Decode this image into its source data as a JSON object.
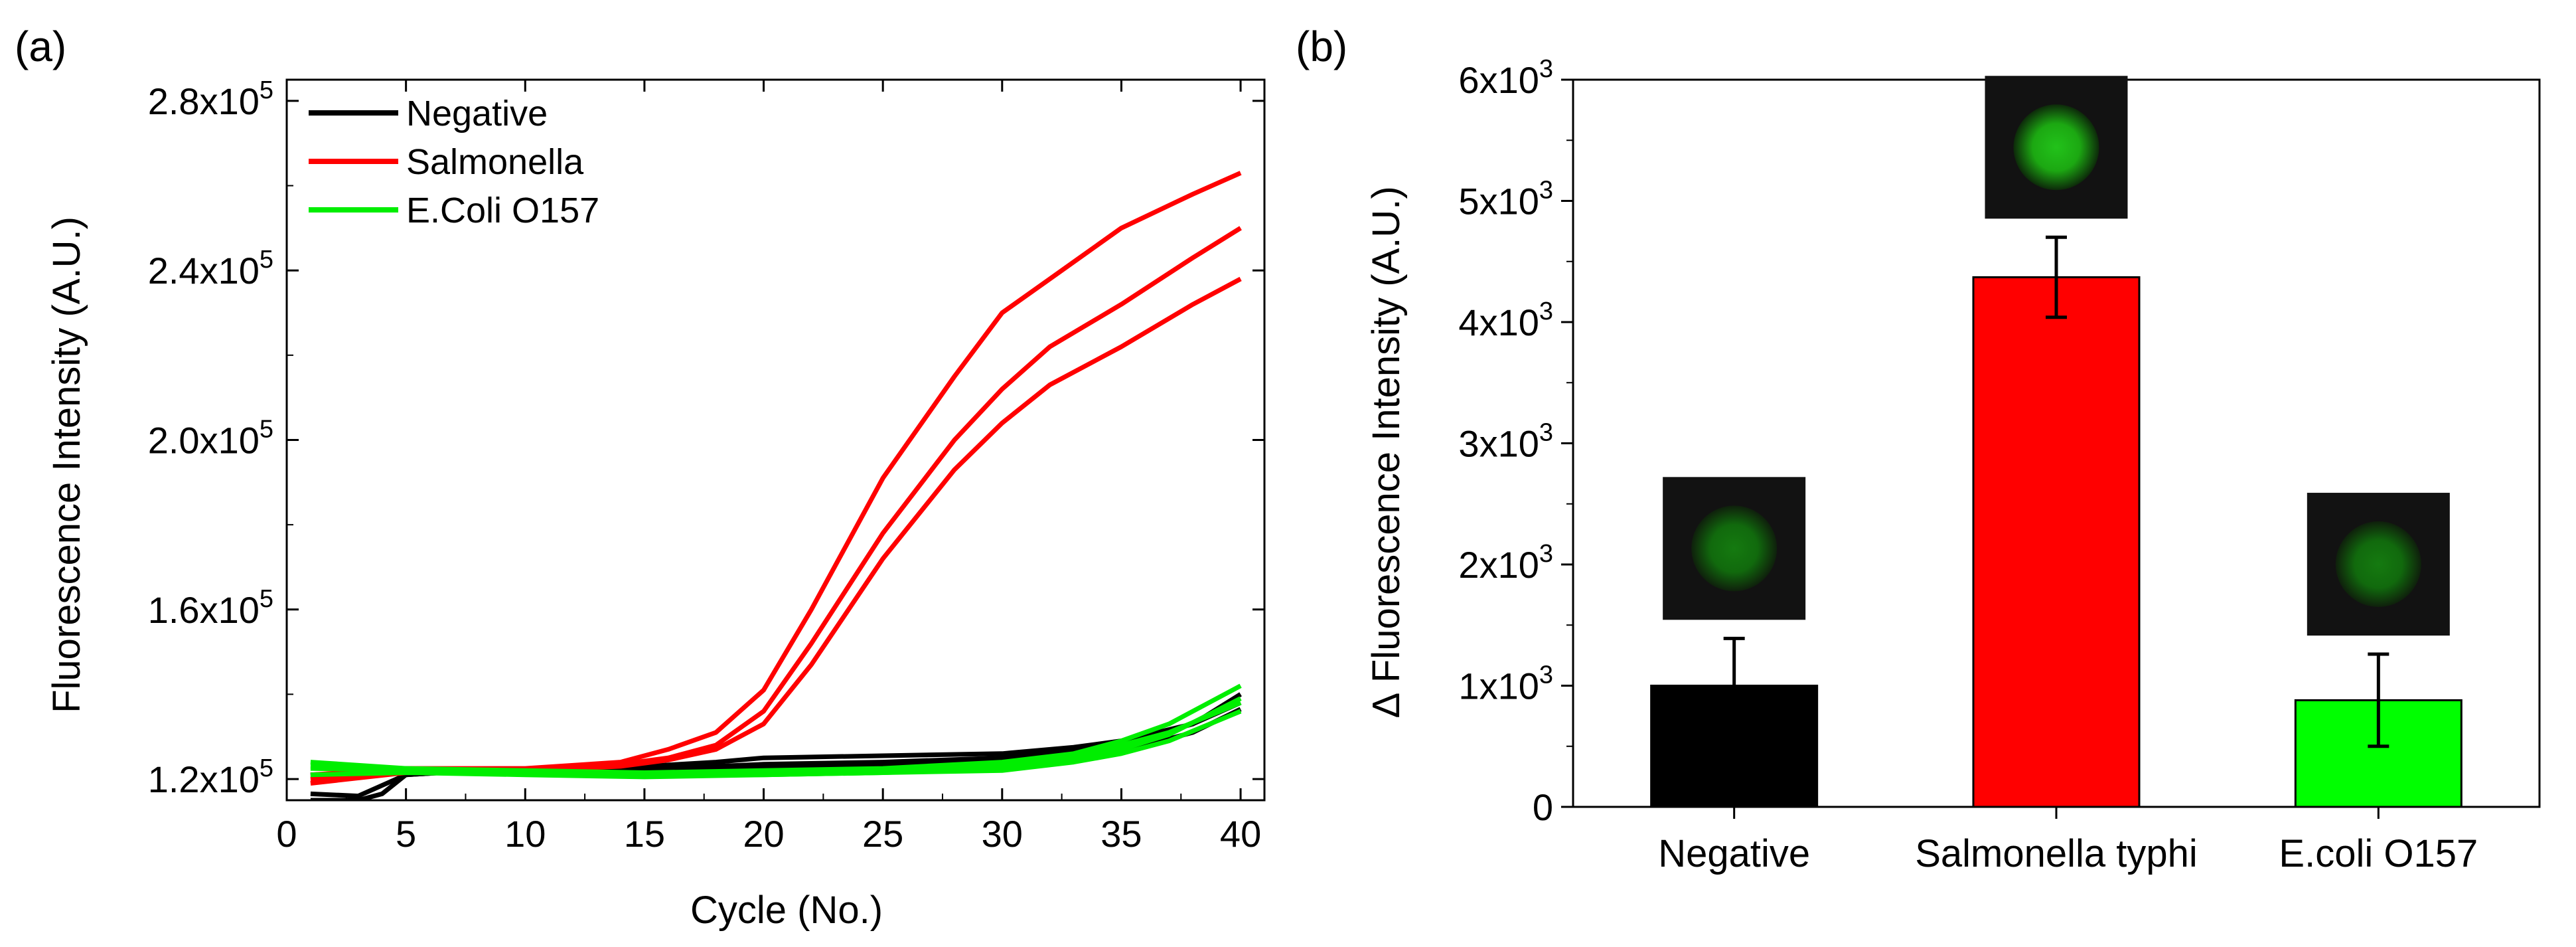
{
  "panels": {
    "a": {
      "label": "(a)",
      "chart_data": {
        "type": "line",
        "xlabel": "Cycle (No.)",
        "ylabel": "Fluorescence Intensity (A.U.)",
        "xlim": [
          0,
          41
        ],
        "ylim": [
          115000,
          285000
        ],
        "xticks": [
          0,
          5,
          10,
          15,
          20,
          25,
          30,
          35,
          40
        ],
        "xtick_labels": [
          "0",
          "5",
          "10",
          "15",
          "20",
          "25",
          "30",
          "35",
          "40"
        ],
        "yticks": [
          120000,
          160000,
          200000,
          240000,
          280000
        ],
        "ytick_mantissas": [
          "1.2x10",
          "1.6x10",
          "2.0x10",
          "2.4x10",
          "2.8x10"
        ],
        "ytick_exponent": "5",
        "legend_position": "top-left",
        "legend": [
          {
            "name": "Negative",
            "color": "#000000"
          },
          {
            "name": "Salmonella",
            "color": "#ff0000"
          },
          {
            "name": "E.Coli O157",
            "color": "#00ee00"
          }
        ],
        "series": [
          {
            "group": "Negative",
            "color": "#000000",
            "x": [
              1,
              3,
              5,
              8,
              12,
              15,
              18,
              20,
              25,
              30,
              33,
              35,
              38,
              40
            ],
            "y": [
              116500,
              116000,
              121000,
              122000,
              122500,
              123000,
              124000,
              125000,
              125500,
              126000,
              127500,
              129000,
              133000,
              138000
            ]
          },
          {
            "group": "Negative",
            "color": "#000000",
            "x": [
              1,
              3,
              4,
              5,
              8,
              12,
              15,
              18,
              20,
              25,
              30,
              35,
              38,
              40
            ],
            "y": [
              115000,
              115000,
              116500,
              121000,
              122000,
              122500,
              122500,
              123000,
              123500,
              124000,
              125000,
              128000,
              133000,
              140000
            ]
          },
          {
            "group": "Negative",
            "color": "#000000",
            "x": [
              1,
              3,
              5,
              8,
              12,
              15,
              20,
              25,
              30,
              35,
              38,
              40
            ],
            "y": [
              121000,
              121500,
              122000,
              122000,
              122500,
              122500,
              123000,
              123500,
              124000,
              126500,
              131000,
              136500
            ]
          },
          {
            "group": "Salmonella",
            "color": "#ff0000",
            "x": [
              1,
              5,
              10,
              14,
              16,
              18,
              20,
              22,
              25,
              28,
              30,
              32,
              35,
              38,
              40
            ],
            "y": [
              121000,
              122500,
              122500,
              124000,
              127000,
              131000,
              141000,
              160000,
              191000,
              215000,
              230000,
              238000,
              250000,
              258000,
              263000
            ]
          },
          {
            "group": "Salmonella",
            "color": "#ff0000",
            "x": [
              1,
              5,
              10,
              14,
              16,
              18,
              20,
              22,
              25,
              28,
              30,
              32,
              35,
              38,
              40
            ],
            "y": [
              120000,
              122000,
              122000,
              123500,
              125000,
              128000,
              136000,
              152000,
              178000,
              200000,
              212000,
              222000,
              232000,
              243000,
              250000
            ]
          },
          {
            "group": "Salmonella",
            "color": "#ff0000",
            "x": [
              1,
              5,
              10,
              14,
              16,
              18,
              20,
              22,
              25,
              28,
              30,
              32,
              35,
              38,
              40
            ],
            "y": [
              119000,
              121500,
              122000,
              123000,
              124500,
              127000,
              133000,
              147000,
              172000,
              193000,
              204000,
              213000,
              222000,
              232000,
              238000
            ]
          },
          {
            "group": "E.Coli O157",
            "color": "#00ee00",
            "x": [
              1,
              5,
              10,
              15,
              20,
              25,
              30,
              33,
              35,
              37,
              40
            ],
            "y": [
              124000,
              122500,
              122000,
              121500,
              122000,
              122500,
              124000,
              126000,
              129000,
              133000,
              142000
            ]
          },
          {
            "group": "E.Coli O157",
            "color": "#00ee00",
            "x": [
              1,
              5,
              10,
              15,
              20,
              25,
              30,
              33,
              35,
              37,
              40
            ],
            "y": [
              122500,
              122000,
              121500,
              121000,
              121500,
              122000,
              123000,
              125000,
              128000,
              131000,
              138000
            ]
          },
          {
            "group": "E.Coli O157",
            "color": "#00ee00",
            "x": [
              1,
              5,
              10,
              15,
              20,
              25,
              30,
              33,
              35,
              37,
              40
            ],
            "y": [
              121000,
              121500,
              121000,
              120500,
              121000,
              121500,
              122000,
              124000,
              126000,
              129000,
              136000
            ]
          },
          {
            "group": "E.Coli O157",
            "color": "#00ee00",
            "x": [
              1,
              5,
              10,
              15,
              20,
              25,
              30,
              33,
              35,
              37,
              40
            ],
            "y": [
              123000,
              122500,
              121500,
              121000,
              121000,
              121500,
              122500,
              124500,
              127000,
              130500,
              139000
            ]
          }
        ]
      }
    },
    "b": {
      "label": "(b)",
      "chart_data": {
        "type": "bar",
        "ylabel": "∆ Fluorescence Intensity (A.U.)",
        "ylim": [
          0,
          6000
        ],
        "yticks": [
          0,
          1000,
          2000,
          3000,
          4000,
          5000,
          6000
        ],
        "ytick_mantissas": [
          "0",
          "1x10",
          "2x10",
          "3x10",
          "4x10",
          "5x10",
          "6x10"
        ],
        "ytick_exponent": "3",
        "categories": [
          "Negative",
          "Salmonella typhi",
          "E.coli O157"
        ],
        "values": [
          1000,
          4370,
          880
        ],
        "error": [
          390,
          330,
          380
        ],
        "colors": [
          "#000000",
          "#ff0000",
          "#00ff00"
        ],
        "spot_intensity": [
          0.55,
          1.0,
          0.55
        ]
      }
    }
  }
}
